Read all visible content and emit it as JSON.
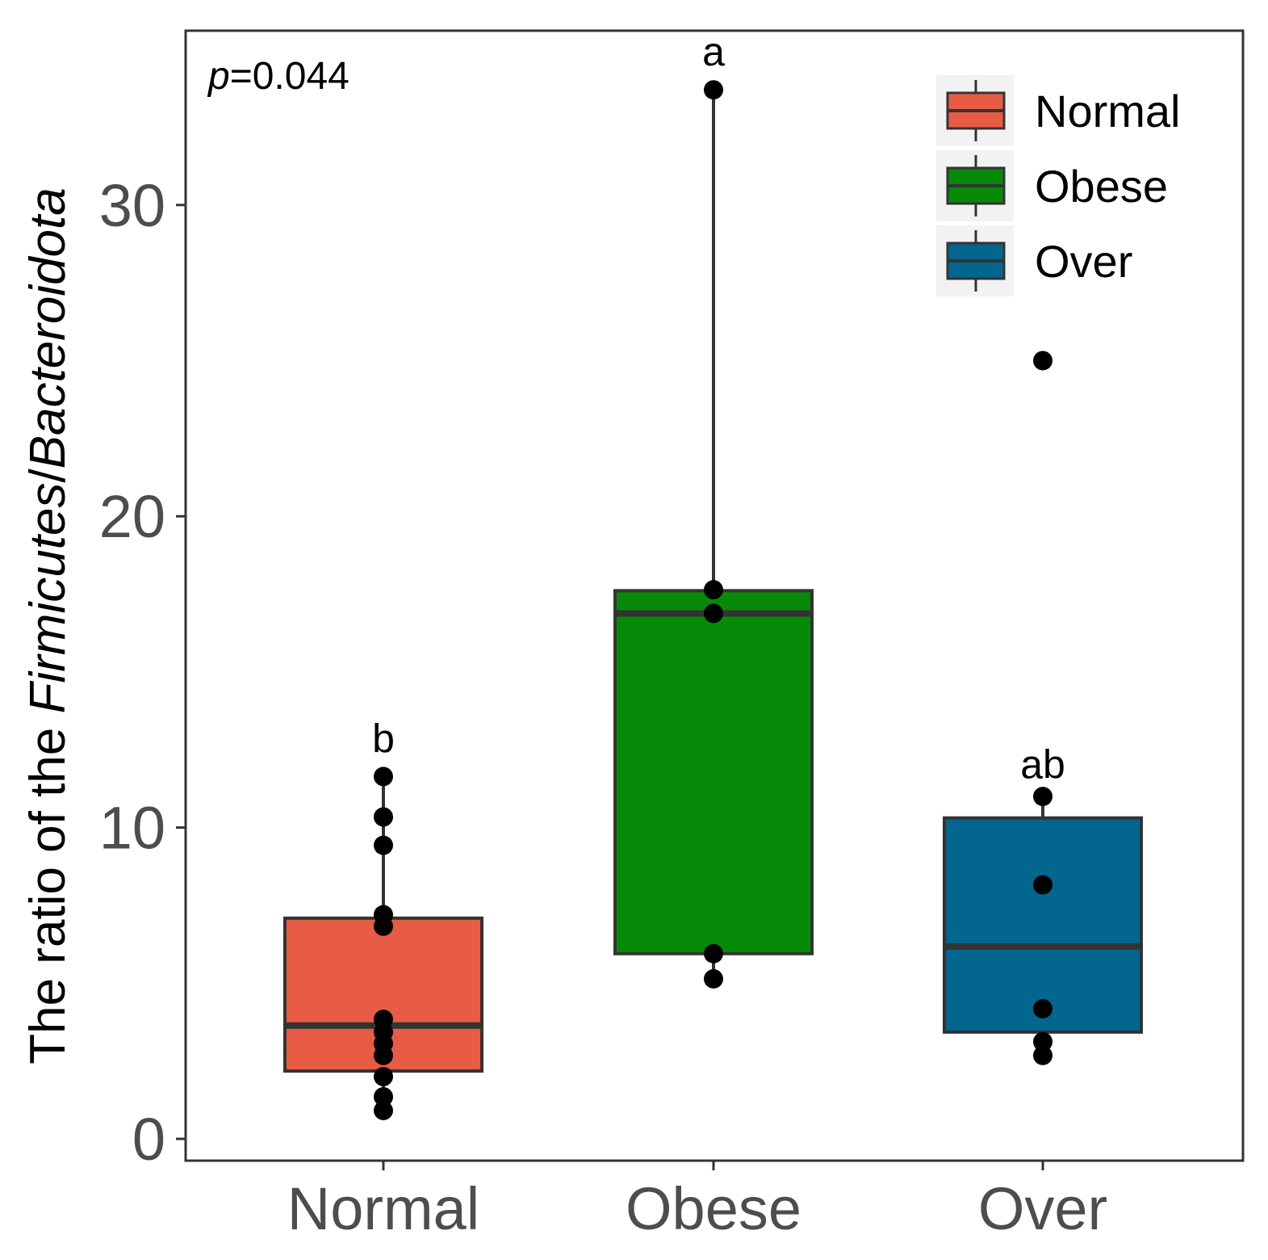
{
  "chart_data": {
    "type": "box",
    "title": "",
    "xlabel": "",
    "ylabel_parts": [
      "The ratio of the ",
      "Firmicutes",
      "/",
      "Bacteroidota"
    ],
    "ylim": [
      -0.7,
      35.6
    ],
    "yticks": [
      0,
      10,
      20,
      30
    ],
    "ytick_labels": [
      "0",
      "10",
      "20",
      "30"
    ],
    "grid": false,
    "annotation": {
      "p_symbol": "p",
      "p_text": "=0.044"
    },
    "legend": {
      "placement": "top-right",
      "entries": [
        "Normal",
        "Obese",
        "Over"
      ]
    },
    "groups": [
      {
        "name": "Normal",
        "color": "#E85C45",
        "letter": "b",
        "whisker_low": 0.83,
        "q1": 2.18,
        "median": 3.64,
        "q3": 7.09,
        "whisker_high": 11.64,
        "points": [
          11.64,
          10.34,
          9.43,
          7.2,
          6.83,
          3.84,
          3.43,
          3.06,
          2.68,
          2.0,
          1.35,
          0.91
        ]
      },
      {
        "name": "Obese",
        "color": "#078A07",
        "letter": "a",
        "whisker_low": 5.14,
        "q1": 5.95,
        "median": 16.88,
        "q3": 17.61,
        "whisker_high": 33.7,
        "points": [
          33.7,
          17.64,
          16.88,
          5.95,
          5.14
        ]
      },
      {
        "name": "Over",
        "color": "#02668F",
        "letter": "ab",
        "whisker_low": 2.68,
        "q1": 3.43,
        "median": 6.18,
        "q3": 10.31,
        "whisker_high": 11.01,
        "outliers": [
          25.0
        ],
        "points": [
          25.0,
          11.0,
          8.16,
          4.18,
          3.12,
          2.68
        ]
      }
    ]
  }
}
